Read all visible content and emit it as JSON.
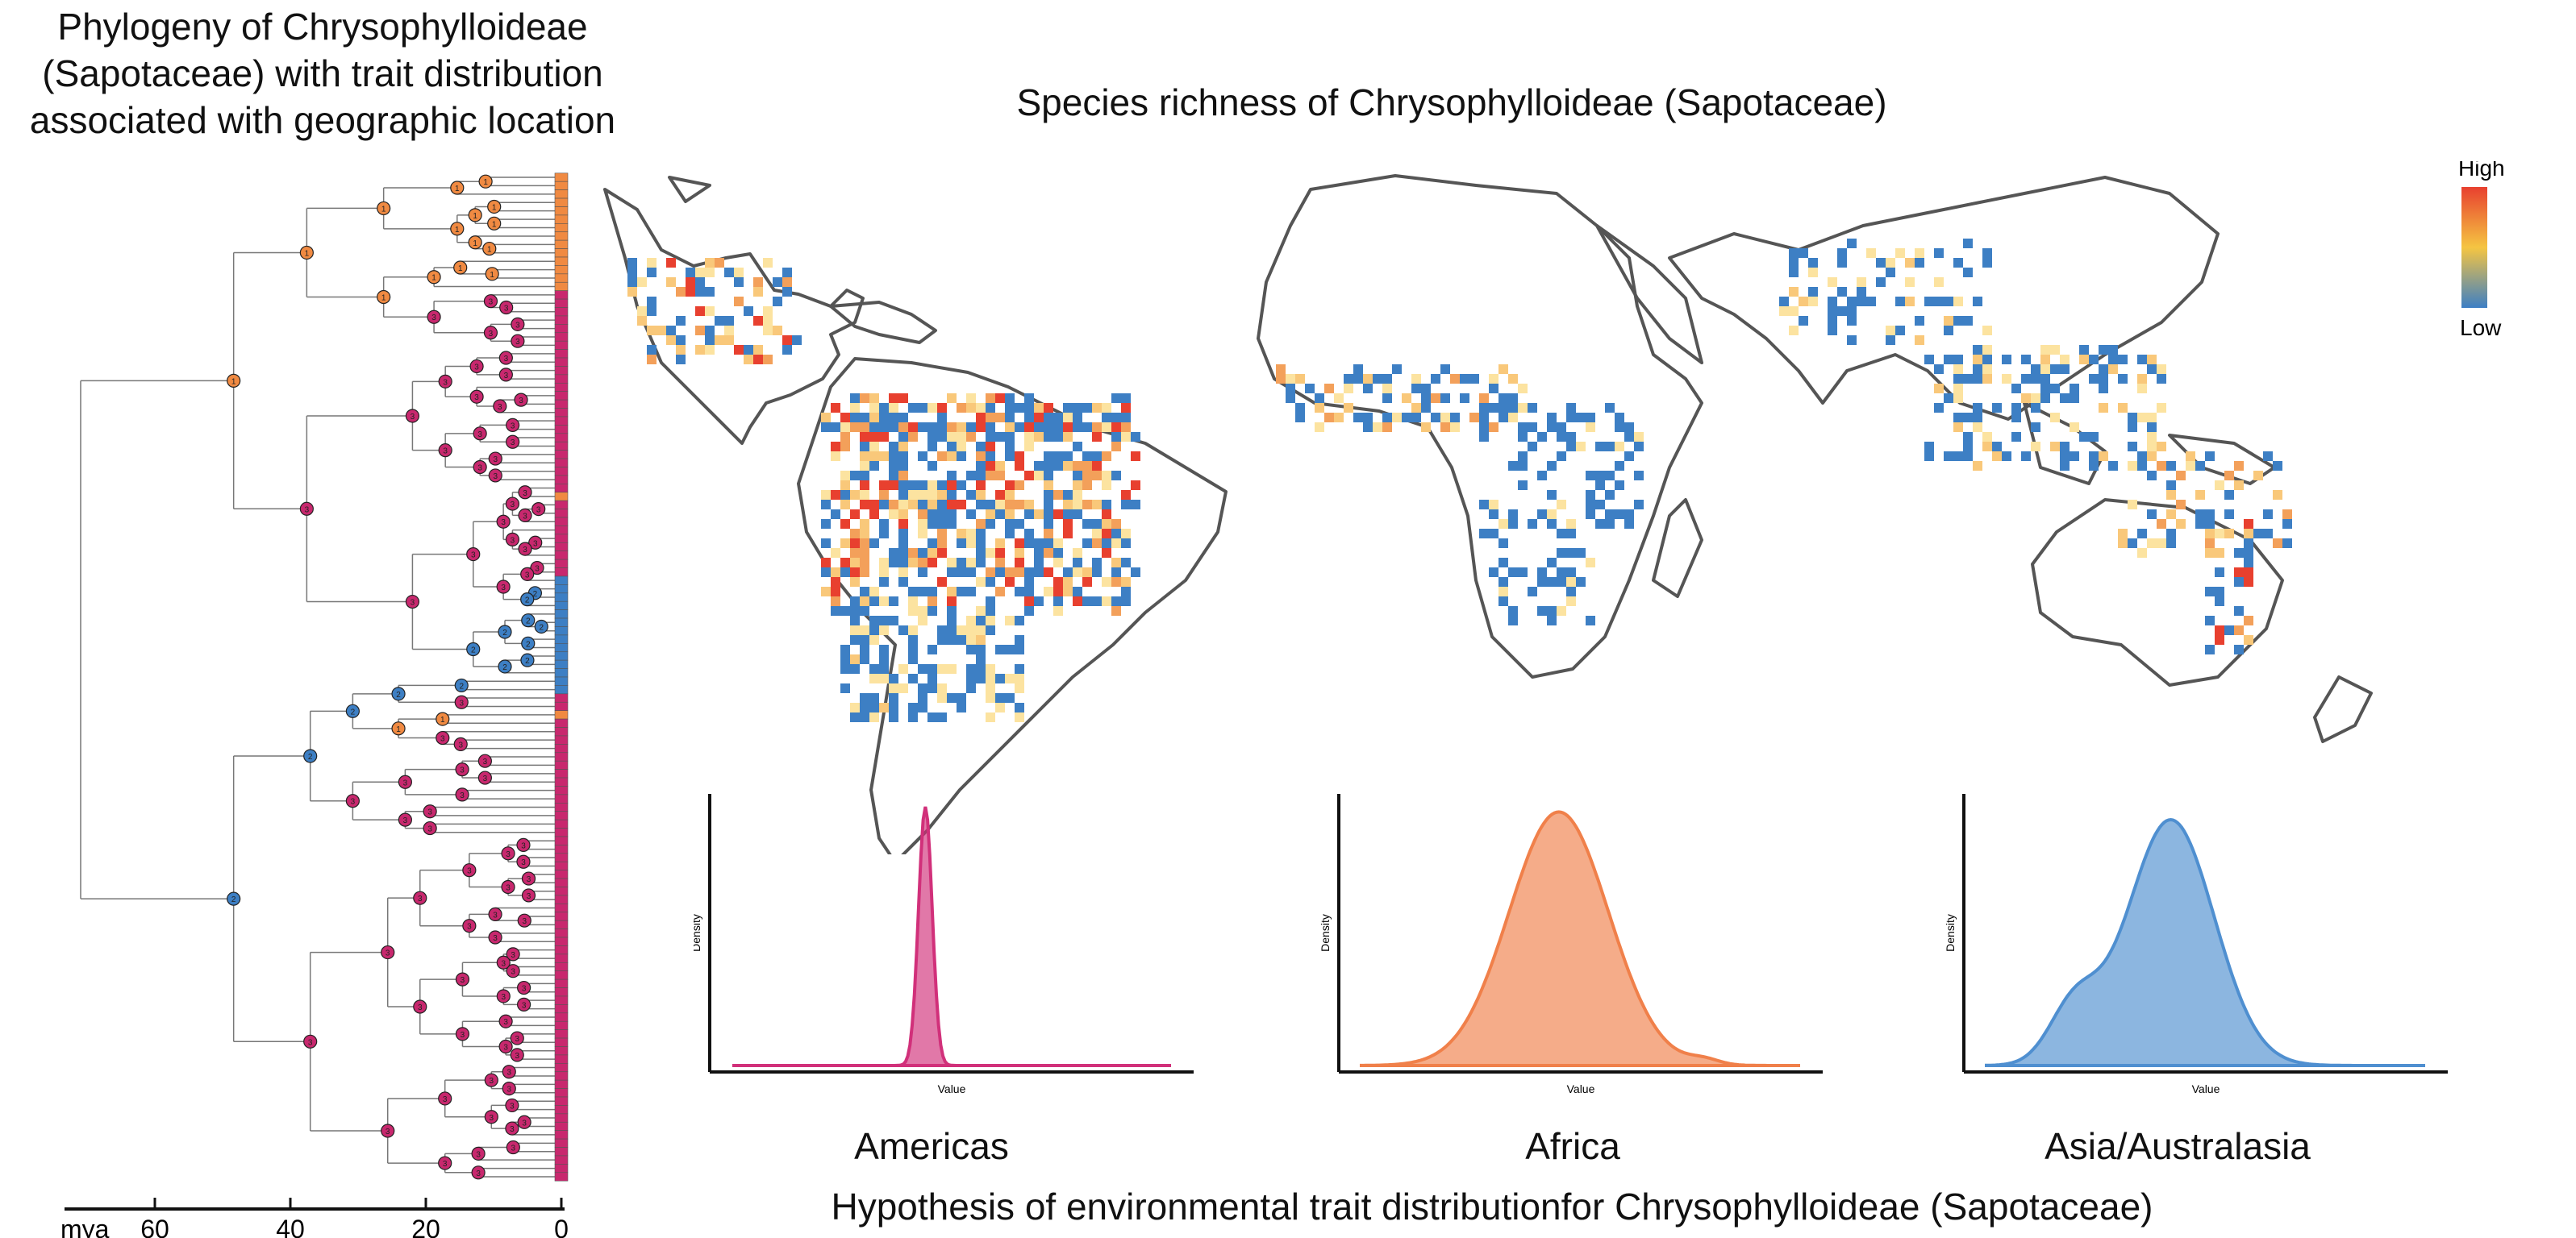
{
  "phylogeny": {
    "title_lines": [
      "Phylogeny of Chrysophylloideae",
      "(Sapotaceae) with trait distribution",
      "associated with geographic location"
    ],
    "axis": {
      "unit_label": "mya",
      "ticks": [
        "60",
        "40",
        "20",
        "0"
      ]
    },
    "clade_states": [
      {
        "state": "1",
        "color": "#f08a42"
      },
      {
        "state": "2",
        "color": "#3d7fc4"
      },
      {
        "state": "3",
        "color": "#c8286e"
      }
    ]
  },
  "map": {
    "title": "Species richness of Chrysophylloideae (Sapotaceae)",
    "legend": {
      "high": "High",
      "low": "Low"
    },
    "colors": {
      "high": "#e8402f",
      "mid": "#f5c542",
      "low": "#3d7fc4",
      "coast": "#555555"
    }
  },
  "density_panels": [
    {
      "region": "Americas",
      "ylabel": "Density",
      "xlabel": "Value",
      "color": "#d1307a"
    },
    {
      "region": "Africa",
      "ylabel": "Density",
      "xlabel": "Value",
      "color": "#f0804a"
    },
    {
      "region": "Asia/Australasia",
      "ylabel": "Density",
      "xlabel": "Value",
      "color": "#4f8fd0"
    }
  ],
  "bottom_title": "Hypothesis of environmental trait distributionfor Chrysophylloideae (Sapotaceae)"
}
